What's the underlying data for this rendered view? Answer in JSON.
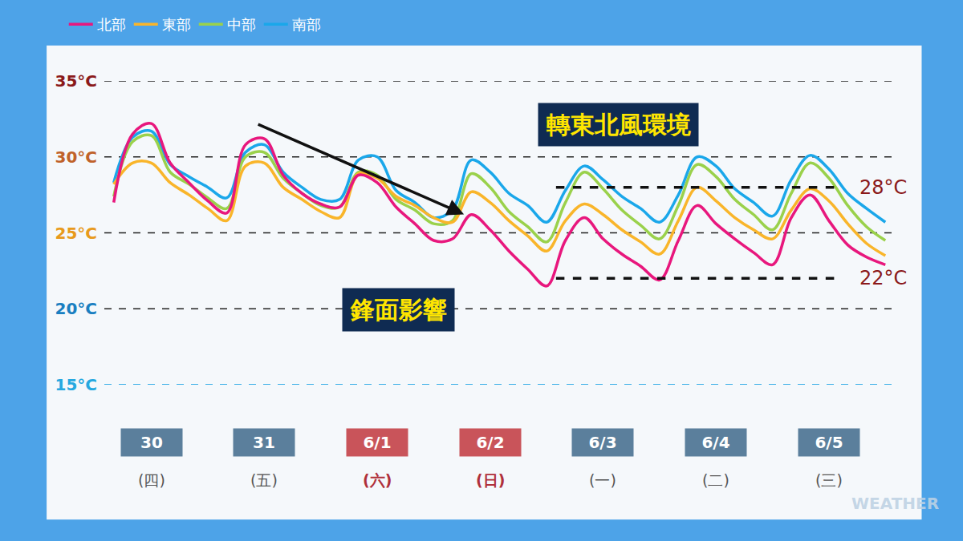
{
  "chart_data": {
    "type": "line",
    "categories": [
      null,
      null,
      "30 (四)",
      null,
      null,
      null,
      null,
      null,
      "31 (五)",
      null,
      null,
      null,
      null,
      null,
      "6/1 (六)",
      null,
      null,
      null,
      null,
      null,
      "6/2 (日)",
      null,
      null,
      null,
      null,
      null,
      "6/3 (一)",
      null,
      null,
      null,
      null,
      null,
      "6/4 (二)",
      null,
      null,
      null,
      null,
      null,
      "6/5 (三)",
      null,
      null,
      null
    ],
    "series": [
      {
        "name": "北部",
        "color": "#e8177d",
        "values": [
          27.0,
          31.5,
          32.2,
          29.6,
          28.3,
          27.1,
          26.3,
          30.8,
          31.2,
          28.8,
          27.6,
          26.9,
          26.7,
          28.8,
          28.3,
          26.7,
          25.6,
          24.5,
          24.6,
          26.2,
          25.2,
          23.8,
          22.6,
          21.5,
          24.5,
          26.0,
          24.6,
          23.6,
          22.8,
          21.9,
          24.5,
          26.8,
          25.6,
          24.6,
          23.7,
          22.9,
          26.0,
          27.5,
          25.8,
          24.2,
          23.4,
          22.9
        ]
      },
      {
        "name": "東部",
        "color": "#f9b52a",
        "values": [
          28.2,
          29.6,
          29.6,
          28.3,
          27.5,
          26.6,
          25.8,
          29.4,
          29.6,
          28.0,
          27.2,
          26.4,
          26.0,
          28.9,
          28.6,
          27.4,
          26.8,
          26.0,
          25.7,
          27.7,
          27.0,
          25.8,
          24.8,
          23.8,
          25.8,
          26.9,
          26.2,
          25.2,
          24.4,
          23.6,
          25.8,
          28.0,
          27.1,
          26.0,
          25.2,
          24.6,
          26.5,
          27.9,
          27.1,
          25.6,
          24.3,
          23.5
        ]
      },
      {
        "name": "中部",
        "color": "#9ad14b",
        "values": [
          27.4,
          31.0,
          31.4,
          29.0,
          28.2,
          27.3,
          26.6,
          30.0,
          30.3,
          28.6,
          27.6,
          26.8,
          26.7,
          29.0,
          28.8,
          27.2,
          26.5,
          25.6,
          25.8,
          28.9,
          28.0,
          26.4,
          25.4,
          24.4,
          27.0,
          29.0,
          27.9,
          26.5,
          25.5,
          24.6,
          26.8,
          29.5,
          28.7,
          27.2,
          26.2,
          25.2,
          27.6,
          29.6,
          28.6,
          26.8,
          25.4,
          24.5
        ]
      },
      {
        "name": "南部",
        "color": "#1aa7ea",
        "values": [
          28.3,
          31.3,
          31.7,
          29.5,
          28.7,
          28.0,
          27.3,
          30.3,
          30.8,
          29.0,
          28.0,
          27.2,
          27.2,
          29.8,
          30.0,
          27.8,
          27.0,
          26.0,
          26.5,
          29.8,
          29.0,
          27.6,
          26.8,
          25.7,
          27.8,
          29.4,
          28.5,
          27.4,
          26.6,
          25.7,
          27.5,
          30.0,
          29.4,
          27.9,
          27.0,
          26.1,
          28.5,
          30.1,
          29.2,
          27.6,
          26.6,
          25.7
        ]
      }
    ],
    "ylim": [
      15,
      35
    ],
    "yticks": [
      {
        "value": 15,
        "label": "15°C"
      },
      {
        "value": 20,
        "label": "20°C"
      },
      {
        "value": 25,
        "label": "25°C"
      },
      {
        "value": 30,
        "label": "30°C"
      },
      {
        "value": 35,
        "label": "35°C"
      }
    ],
    "grid": true,
    "legend": "top left",
    "annotations": [
      "轉東北風環境",
      "鋒面影響",
      "WEATHER"
    ],
    "reference_lines": [
      {
        "value": 28,
        "label": "28°C"
      },
      {
        "value": 22,
        "label": "22°C"
      }
    ]
  }
}
